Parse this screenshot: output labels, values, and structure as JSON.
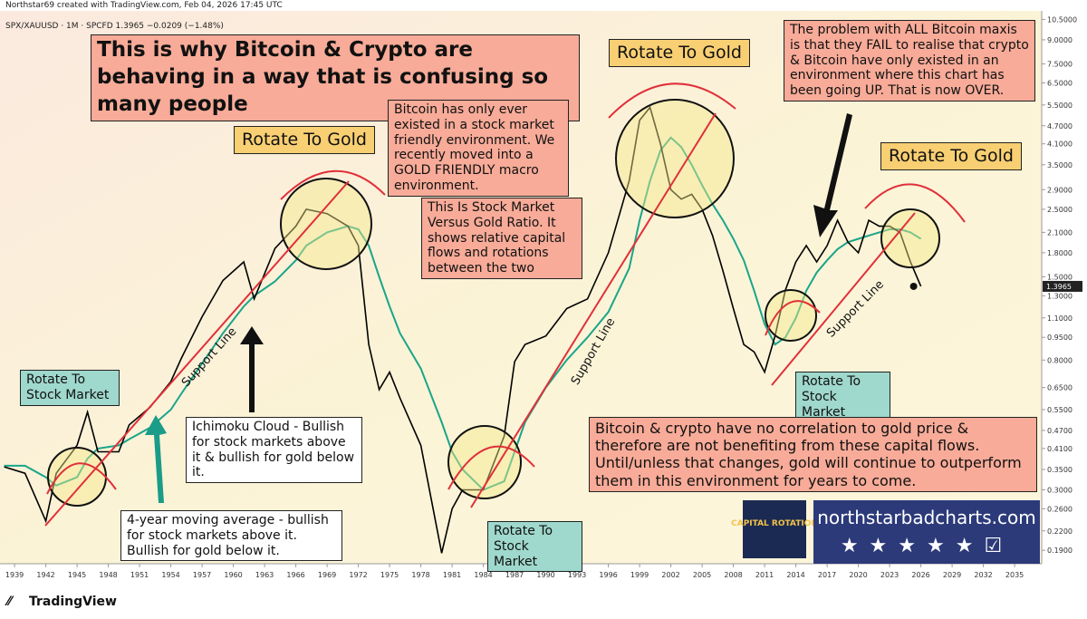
{
  "header": {
    "credit": "Northstar69 created with TradingView.com, Feb 04, 2026 17:45 UTC",
    "symbol": "SPX/XAUUSD · 1M · SPCFD 1.3965 −0.0209 (−1.48%)"
  },
  "chart_data": {
    "type": "line",
    "log_scale": true,
    "x": [
      1938,
      1940,
      1942,
      1943,
      1945,
      1946,
      1947,
      1949,
      1950,
      1952,
      1954,
      1955,
      1957,
      1959,
      1961,
      1962,
      1964,
      1966,
      1967,
      1969,
      1971,
      1972,
      1973,
      1974,
      1975,
      1976,
      1978,
      1980,
      1981,
      1982,
      1984,
      1986,
      1987,
      1988,
      1990,
      1992,
      1994,
      1996,
      1998,
      1999,
      2000,
      2001,
      2002,
      2003,
      2004,
      2005,
      2006,
      2007,
      2008,
      2009,
      2010,
      2011,
      2012,
      2013,
      2014,
      2015,
      2016,
      2017,
      2018,
      2019,
      2020,
      2021,
      2022,
      2023,
      2024,
      2025,
      2026
    ],
    "series": [
      {
        "color": "#000000",
        "values": [
          0.357,
          0.34,
          0.237,
          0.34,
          0.42,
          0.54,
          0.4,
          0.4,
          0.49,
          0.56,
          0.68,
          0.81,
          1.11,
          1.46,
          1.68,
          1.27,
          1.86,
          2.2,
          2.5,
          2.42,
          2.2,
          1.9,
          0.9,
          0.64,
          0.73,
          0.6,
          0.42,
          0.186,
          0.26,
          0.3,
          0.3,
          0.45,
          0.79,
          0.9,
          0.96,
          1.18,
          1.27,
          1.8,
          3.1,
          4.9,
          5.4,
          4.1,
          2.9,
          2.7,
          2.8,
          2.5,
          2.05,
          1.57,
          1.18,
          0.9,
          0.85,
          0.73,
          0.96,
          1.36,
          1.68,
          1.9,
          1.68,
          1.9,
          2.3,
          1.95,
          1.8,
          2.3,
          2.2,
          2.2,
          2.1,
          1.68,
          1.3965
        ]
      },
      {
        "color": "#1aa58a",
        "values": [
          0.36,
          0.36,
          0.33,
          0.31,
          0.33,
          0.38,
          0.41,
          0.42,
          0.44,
          0.48,
          0.55,
          0.62,
          0.78,
          0.98,
          1.2,
          1.3,
          1.45,
          1.7,
          1.9,
          2.1,
          2.2,
          2.15,
          1.9,
          1.5,
          1.2,
          0.98,
          0.75,
          0.5,
          0.4,
          0.35,
          0.3,
          0.32,
          0.4,
          0.5,
          0.65,
          0.8,
          0.95,
          1.15,
          1.6,
          2.3,
          3.1,
          3.9,
          4.3,
          4.0,
          3.5,
          3.0,
          2.6,
          2.3,
          2.0,
          1.7,
          1.35,
          1.05,
          0.9,
          0.95,
          1.1,
          1.35,
          1.55,
          1.7,
          1.85,
          1.95,
          2.0,
          2.05,
          2.1,
          2.15,
          2.15,
          2.1,
          2.0
        ]
      }
    ],
    "xlim": [
      1937.6,
      2037.6
    ],
    "xticks": [
      1939,
      1942,
      1945,
      1948,
      1951,
      1954,
      1957,
      1960,
      1963,
      1966,
      1969,
      1972,
      1975,
      1978,
      1981,
      1984,
      1987,
      1990,
      1993,
      1996,
      1999,
      2002,
      2005,
      2008,
      2011,
      2014,
      2017,
      2020,
      2023,
      2026,
      2029,
      2032,
      2035
    ],
    "ylim": [
      0.174,
      11.2
    ],
    "yticks": [
      {
        "value": 10.5,
        "label": "10.5000"
      },
      {
        "value": 9,
        "label": "9.0000"
      },
      {
        "value": 7.5,
        "label": "7.5000"
      },
      {
        "value": 6.5,
        "label": "6.5000"
      },
      {
        "value": 5.5,
        "label": "5.5000"
      },
      {
        "value": 4.7,
        "label": "4.7000"
      },
      {
        "value": 4.1,
        "label": "4.1000"
      },
      {
        "value": 3.5,
        "label": "3.5000"
      },
      {
        "value": 2.9,
        "label": "2.9000"
      },
      {
        "value": 2.5,
        "label": "2.5000"
      },
      {
        "value": 2.1,
        "label": "2.1000"
      },
      {
        "value": 1.8,
        "label": "1.8000"
      },
      {
        "value": 1.5,
        "label": "1.5000"
      },
      {
        "value": 1.3,
        "label": "1.3000"
      },
      {
        "value": 1.1,
        "label": "1.1000"
      },
      {
        "value": 0.95,
        "label": "0.9500"
      },
      {
        "value": 0.8,
        "label": "0.8000"
      },
      {
        "value": 0.65,
        "label": "0.6500"
      },
      {
        "value": 0.55,
        "label": "0.5500"
      },
      {
        "value": 0.47,
        "label": "0.4700"
      },
      {
        "value": 0.41,
        "label": "0.4100"
      },
      {
        "value": 0.35,
        "label": "0.3500"
      },
      {
        "value": 0.3,
        "label": "0.3000"
      },
      {
        "value": 0.26,
        "label": "0.2600"
      },
      {
        "value": 0.22,
        "label": "0.2200"
      },
      {
        "value": 0.19,
        "label": "0.1900"
      }
    ],
    "last_price": {
      "value": 1.3965,
      "label": "1.3965"
    }
  },
  "annotations": [
    "This is why Bitcoin & Crypto are behaving in a way that is confusing so many people",
    "Rotate To Gold",
    "Bitcoin has only ever existed in a stock market friendly environment. We recently moved into a GOLD FRIENDLY macro environment.",
    "This Is Stock Market Versus Gold Ratio. It shows relative capital flows and rotations between the two",
    "Rotate To Gold",
    "The problem with ALL Bitcoin maxis is that they FAIL to realise that crypto & Bitcoin have only existed in an environment where this chart has been going UP. That is now OVER.",
    "Rotate To Gold",
    "Rotate To Stock Market",
    "Ichimoku Cloud - Bullish for stock markets above it & bullish for gold below it.",
    "4-year moving average - bullish for stock markets above it. Bullish for gold below it.",
    "Rotate To Stock Market",
    "Rotate To Stock Market",
    "Bitcoin & crypto have no correlation to gold price & therefore are not benefiting from these capital flows. Until/unless that changes, gold will continue to outperform them in this environment for years to come.",
    "Support Line",
    "Support Line",
    "Support Line"
  ],
  "branding": {
    "site": "northstarbadcharts.com",
    "logo": "CAPITAL ROTATION",
    "footer": "TradingView"
  }
}
